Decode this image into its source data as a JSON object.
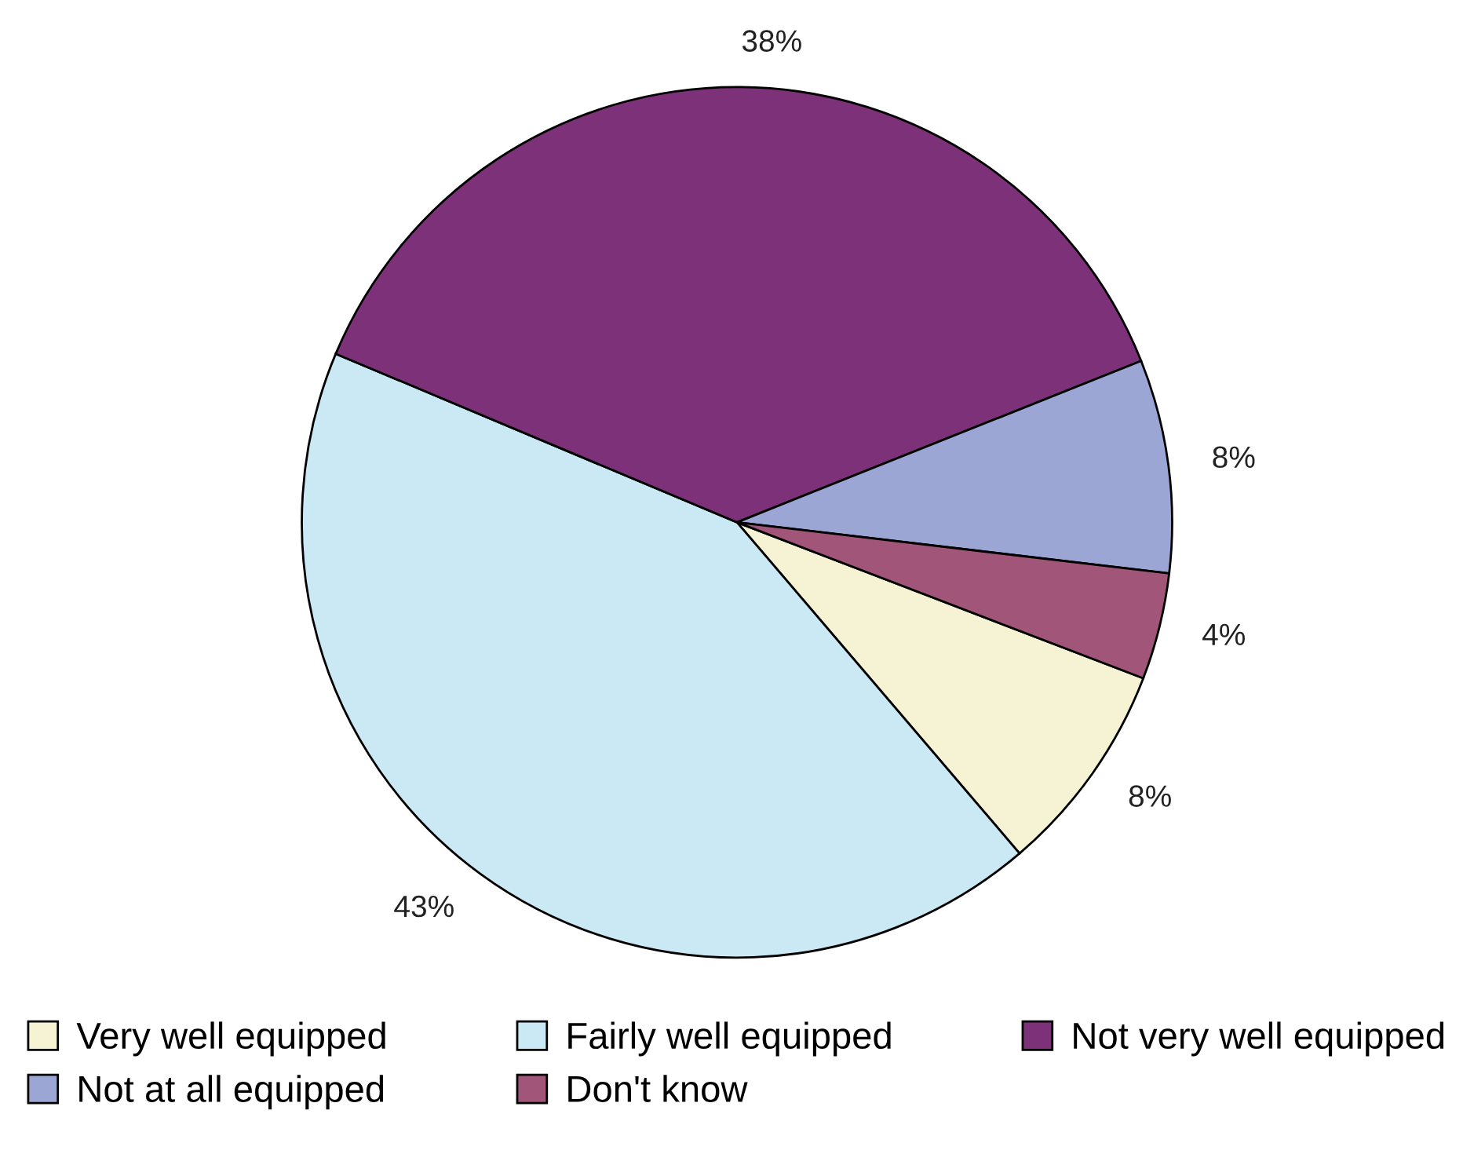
{
  "chart_data": {
    "type": "pie",
    "categories": [
      "Very well equipped",
      "Fairly well equipped",
      "Not very well equipped",
      "Not at all equipped",
      "Don't know"
    ],
    "values": [
      8,
      43,
      38,
      8,
      4
    ],
    "colors": [
      "#f5f3d4",
      "#cbe9f4",
      "#7d3179",
      "#9ba6d4",
      "#a15578"
    ],
    "value_labels": [
      "8%",
      "43%",
      "38%",
      "8%",
      "4%"
    ],
    "legend": "bottom"
  }
}
